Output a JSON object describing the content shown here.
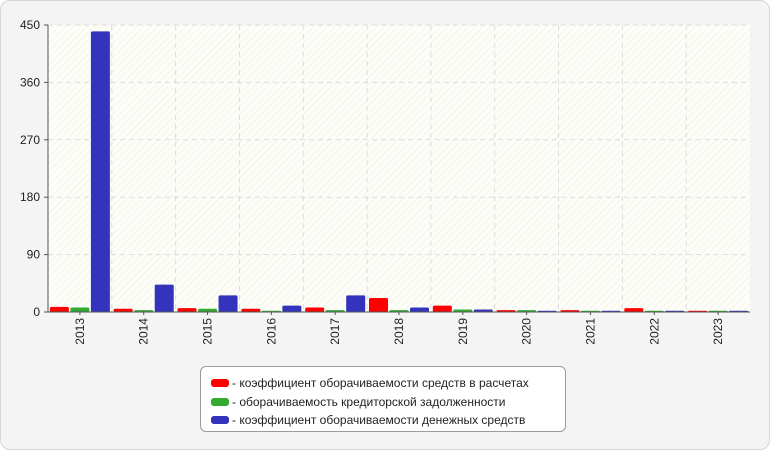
{
  "chart_data": {
    "type": "bar",
    "categories": [
      "2013",
      "2014",
      "2015",
      "2016",
      "2017",
      "2018",
      "2019",
      "2020",
      "2021",
      "2022",
      "2023"
    ],
    "series": [
      {
        "name": "- коэффициент оборачиваемости средств в расчетах",
        "color": "#ff0000",
        "values": [
          8,
          5,
          6,
          5,
          7,
          22,
          10,
          3,
          3,
          6,
          2
        ]
      },
      {
        "name": "- оборачиваемость кредиторской задолженности",
        "color": "#33aa33",
        "values": [
          7,
          3,
          5,
          2,
          3,
          3,
          4,
          3,
          2,
          2,
          2
        ]
      },
      {
        "name": "- коэффициент оборачиваемости денежных средств",
        "color": "#3333bb",
        "values": [
          440,
          43,
          26,
          10,
          26,
          7,
          4,
          2,
          2,
          2,
          2
        ]
      }
    ],
    "yticks": [
      "0",
      "90",
      "180",
      "270",
      "360",
      "450"
    ],
    "ylim": [
      0,
      450
    ],
    "grid": true,
    "legend": "bottom-center"
  }
}
